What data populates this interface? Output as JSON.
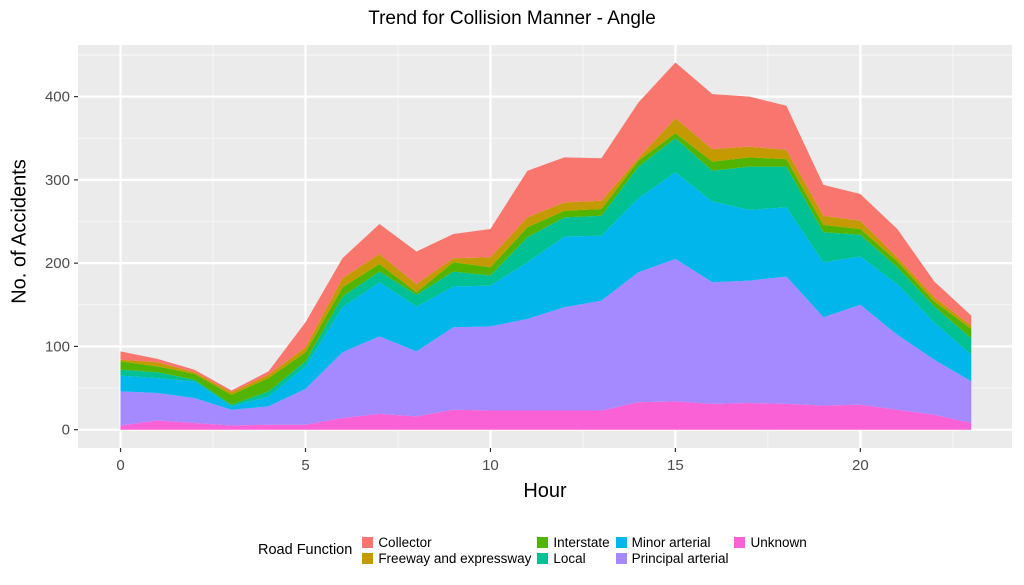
{
  "chart_data": {
    "type": "area",
    "stacked": true,
    "title": "Trend for Collision Manner - Angle",
    "xlabel": "Hour",
    "ylabel": "No. of Accidents",
    "x": [
      0,
      1,
      2,
      3,
      4,
      5,
      6,
      7,
      8,
      9,
      10,
      11,
      12,
      13,
      14,
      15,
      16,
      17,
      18,
      19,
      20,
      21,
      22,
      23
    ],
    "xticks": [
      0,
      5,
      10,
      15,
      20
    ],
    "yticks": [
      0,
      100,
      200,
      300,
      400
    ],
    "xlim": [
      -1.15,
      24.1
    ],
    "ylim": [
      -22,
      462
    ],
    "grid": true,
    "legend_position": "bottom",
    "legend_title": "Road Function",
    "stack_order_bottom_to_top": [
      "Unknown",
      "Principal arterial",
      "Minor arterial",
      "Local",
      "Interstate",
      "Freeway and expressway",
      "Collector"
    ],
    "series": [
      {
        "name": "Collector",
        "color": "#F8766D",
        "values": [
          10,
          4,
          3,
          2,
          4,
          30,
          24,
          36,
          39,
          29,
          34,
          56,
          54,
          51,
          67,
          67,
          66,
          60,
          53,
          37,
          32,
          34,
          19,
          12
        ]
      },
      {
        "name": "Freeway and expressway",
        "color": "#C49A00",
        "values": [
          2,
          5,
          2,
          3,
          4,
          6,
          11,
          12,
          10,
          5,
          12,
          12,
          10,
          10,
          3,
          18,
          15,
          13,
          11,
          11,
          10,
          5,
          5,
          4
        ]
      },
      {
        "name": "Interstate",
        "color": "#53B400",
        "values": [
          10,
          7,
          7,
          12,
          16,
          11,
          11,
          9,
          3,
          11,
          10,
          12,
          8,
          8,
          7,
          6,
          11,
          11,
          9,
          9,
          7,
          7,
          6,
          11
        ]
      },
      {
        "name": "Local",
        "color": "#00C094",
        "values": [
          7,
          7,
          2,
          2,
          6,
          6,
          13,
          13,
          14,
          18,
          12,
          30,
          23,
          24,
          38,
          41,
          37,
          52,
          49,
          36,
          26,
          20,
          19,
          20
        ]
      },
      {
        "name": "Minor arterial",
        "color": "#00B6EB",
        "values": [
          19,
          18,
          20,
          4,
          12,
          27,
          54,
          65,
          54,
          49,
          49,
          68,
          85,
          78,
          89,
          104,
          97,
          85,
          83,
          66,
          58,
          61,
          45,
          32
        ]
      },
      {
        "name": "Principal arterial",
        "color": "#A58AFF",
        "values": [
          41,
          33,
          30,
          19,
          22,
          43,
          79,
          93,
          78,
          99,
          101,
          110,
          124,
          132,
          156,
          171,
          146,
          147,
          153,
          106,
          120,
          90,
          66,
          50
        ]
      },
      {
        "name": "Unknown",
        "color": "#FB61D7",
        "values": [
          5,
          11,
          8,
          5,
          6,
          6,
          14,
          19,
          16,
          24,
          23,
          23,
          23,
          23,
          33,
          34,
          31,
          32,
          31,
          29,
          30,
          24,
          18,
          8
        ]
      }
    ]
  },
  "legend": {
    "title": "Road Function",
    "items": [
      {
        "label": "Collector",
        "color": "#F8766D"
      },
      {
        "label": "Freeway and expressway",
        "color": "#C49A00"
      },
      {
        "label": "Interstate",
        "color": "#53B400"
      },
      {
        "label": "Local",
        "color": "#00C094"
      },
      {
        "label": "Minor arterial",
        "color": "#00B6EB"
      },
      {
        "label": "Principal arterial",
        "color": "#A58AFF"
      },
      {
        "label": "Unknown",
        "color": "#FB61D7"
      }
    ]
  },
  "colors": {
    "panel_background": "#EBEBEB",
    "grid_major": "#FFFFFF",
    "axis_text": "#4D4D4D"
  }
}
